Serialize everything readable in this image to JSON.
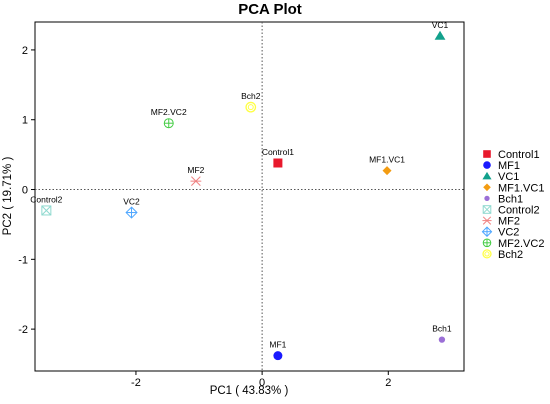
{
  "chart_data": {
    "type": "scatter",
    "title": "PCA Plot",
    "xlabel": "PC1 ( 43.83% )",
    "ylabel": "PC2 ( 19.71% )",
    "xlim": [
      -3.6,
      3.2
    ],
    "ylim": [
      -2.6,
      2.4
    ],
    "xticks": [
      -2,
      0,
      2
    ],
    "yticks": [
      -2,
      -1,
      0,
      1,
      2
    ],
    "reference_lines": {
      "x": 0,
      "y": 0,
      "style": "dotted"
    },
    "grid": false,
    "legend_position": "right",
    "points": [
      {
        "name": "Control1",
        "x": 0.25,
        "y": 0.38,
        "color": "#e8192c",
        "marker": "square"
      },
      {
        "name": "MF1",
        "x": 0.25,
        "y": -2.38,
        "color": "#1a1aff",
        "marker": "circle"
      },
      {
        "name": "VC1",
        "x": 2.82,
        "y": 2.2,
        "color": "#12a18c",
        "marker": "triangle"
      },
      {
        "name": "MF1.VC1",
        "x": 1.98,
        "y": 0.27,
        "color": "#f39c12",
        "marker": "diamond"
      },
      {
        "name": "Bch1",
        "x": 2.85,
        "y": -2.15,
        "color": "#9b6fd6",
        "marker": "small-circle"
      },
      {
        "name": "Control2",
        "x": -3.42,
        "y": -0.3,
        "color": "#8fd9cf",
        "marker": "square-x"
      },
      {
        "name": "MF2",
        "x": -1.05,
        "y": 0.12,
        "color": "#f08080",
        "marker": "asterisk"
      },
      {
        "name": "VC2",
        "x": -2.07,
        "y": -0.33,
        "color": "#4da6ff",
        "marker": "diamond-plus"
      },
      {
        "name": "MF2.VC2",
        "x": -1.48,
        "y": 0.95,
        "color": "#44cc44",
        "marker": "circle-plus"
      },
      {
        "name": "Bch2",
        "x": -0.18,
        "y": 1.18,
        "color": "#ffff44",
        "marker": "circle-open"
      }
    ]
  }
}
